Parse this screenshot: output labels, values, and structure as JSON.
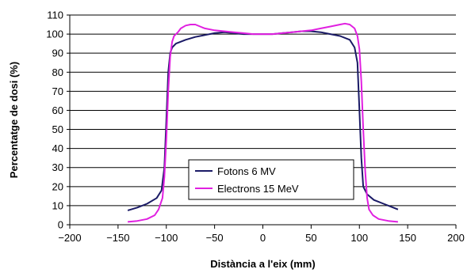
{
  "chart_data": {
    "type": "line",
    "title": "",
    "xlabel": "Distància a l'eix (mm)",
    "ylabel": "Percentatge de dosi (%)",
    "xlim": [
      -200,
      200
    ],
    "ylim": [
      0,
      110
    ],
    "xticks": [
      -200,
      -150,
      -100,
      -50,
      0,
      50,
      100,
      150,
      200
    ],
    "yticks": [
      0,
      10,
      20,
      30,
      40,
      50,
      60,
      70,
      80,
      90,
      100,
      110
    ],
    "grid": "horizontal",
    "legend_position": "bottom-center",
    "series": [
      {
        "name": "Fotons 6 MV",
        "color": "#1a1a66",
        "points": [
          [
            -140,
            7.5
          ],
          [
            -130,
            9
          ],
          [
            -120,
            11
          ],
          [
            -110,
            14
          ],
          [
            -105,
            18
          ],
          [
            -102,
            30
          ],
          [
            -100,
            55
          ],
          [
            -98,
            80
          ],
          [
            -96,
            90
          ],
          [
            -94,
            93
          ],
          [
            -90,
            95
          ],
          [
            -80,
            97
          ],
          [
            -70,
            98.5
          ],
          [
            -60,
            99.5
          ],
          [
            -50,
            100.5
          ],
          [
            -40,
            101
          ],
          [
            -30,
            100.5
          ],
          [
            -20,
            100
          ],
          [
            -10,
            100
          ],
          [
            0,
            100
          ],
          [
            10,
            100
          ],
          [
            20,
            100.5
          ],
          [
            30,
            101
          ],
          [
            40,
            101.5
          ],
          [
            50,
            101.5
          ],
          [
            60,
            101
          ],
          [
            70,
            100
          ],
          [
            80,
            99
          ],
          [
            90,
            97
          ],
          [
            95,
            93
          ],
          [
            98,
            85
          ],
          [
            100,
            60
          ],
          [
            102,
            35
          ],
          [
            104,
            20
          ],
          [
            108,
            16
          ],
          [
            115,
            13
          ],
          [
            125,
            11
          ],
          [
            135,
            9
          ],
          [
            140,
            8
          ]
        ]
      },
      {
        "name": "Electrons 15 MeV",
        "color": "#e020e0",
        "points": [
          [
            -140,
            1.5
          ],
          [
            -130,
            2
          ],
          [
            -120,
            3
          ],
          [
            -112,
            5
          ],
          [
            -108,
            8
          ],
          [
            -104,
            14
          ],
          [
            -102,
            25
          ],
          [
            -100,
            45
          ],
          [
            -98,
            70
          ],
          [
            -96,
            88
          ],
          [
            -94,
            96
          ],
          [
            -92,
            99
          ],
          [
            -88,
            101
          ],
          [
            -85,
            103
          ],
          [
            -80,
            104.5
          ],
          [
            -75,
            105
          ],
          [
            -70,
            105
          ],
          [
            -65,
            104
          ],
          [
            -60,
            103
          ],
          [
            -50,
            102
          ],
          [
            -40,
            101.5
          ],
          [
            -30,
            101
          ],
          [
            -20,
            100.5
          ],
          [
            -10,
            100
          ],
          [
            0,
            100
          ],
          [
            10,
            100
          ],
          [
            20,
            100.5
          ],
          [
            30,
            101
          ],
          [
            40,
            101.5
          ],
          [
            50,
            102
          ],
          [
            60,
            103
          ],
          [
            70,
            104
          ],
          [
            80,
            105
          ],
          [
            85,
            105.5
          ],
          [
            90,
            105
          ],
          [
            95,
            103
          ],
          [
            98,
            99
          ],
          [
            100,
            92
          ],
          [
            102,
            75
          ],
          [
            104,
            50
          ],
          [
            106,
            28
          ],
          [
            108,
            14
          ],
          [
            110,
            8
          ],
          [
            114,
            5
          ],
          [
            120,
            3
          ],
          [
            130,
            2
          ],
          [
            140,
            1.5
          ]
        ]
      }
    ]
  }
}
